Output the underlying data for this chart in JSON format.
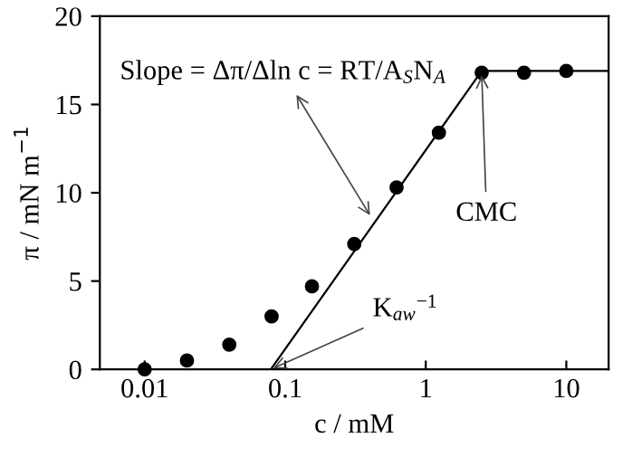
{
  "chart_data": {
    "type": "scatter",
    "xlabel": "c / mM",
    "ylabel": "π / mN m$^{−1}$",
    "log": "x",
    "xlim": [
      0.0048,
      20
    ],
    "xticks": [
      0.01,
      0.1,
      1,
      10
    ],
    "ylim": [
      0,
      20
    ],
    "yticks": [
      0,
      5,
      10,
      15,
      20
    ],
    "series": [
      {
        "color": "#000000",
        "marker": "circle",
        "x": [
          0.01,
          0.02,
          0.04,
          0.08,
          0.155,
          0.31,
          0.62,
          1.24,
          2.5,
          5,
          10
        ],
        "values": [
          0,
          0.5,
          1.4,
          3.0,
          4.7,
          7.1,
          10.3,
          13.4,
          16.8,
          16.8,
          16.9
        ]
      },
      {
        "type": "line",
        "color": "#000000",
        "x": [
          0.079,
          2.5,
          20
        ],
        "values": [
          0,
          16.9,
          16.9
        ]
      }
    ],
    "annotations": [
      {
        "text": "Slope = Δπ/Δln c = RT/A$_{S}$N$_{A}$",
        "x": 0.41,
        "y": 8.6
      },
      {
        "text": "CMC",
        "x": 2.5,
        "y": 16.8
      },
      {
        "text": "K$_{aw}$$^{−1}$",
        "x": 0.079,
        "y": 0
      }
    ],
    "grid": false,
    "legend": false
  }
}
